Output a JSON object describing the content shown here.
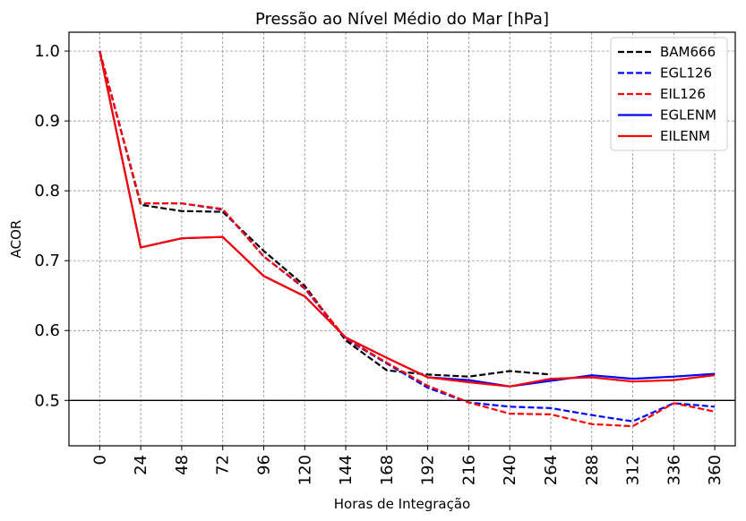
{
  "chart_data": {
    "type": "line",
    "title": "Pressão ao Nível Médio do Mar [hPa]",
    "xlabel": "Horas de Integração",
    "ylabel": "ACOR",
    "x": [
      0,
      24,
      48,
      72,
      96,
      120,
      144,
      168,
      192,
      216,
      240,
      264,
      288,
      312,
      336,
      360
    ],
    "xticks": [
      "0",
      "24",
      "48",
      "72",
      "96",
      "120",
      "144",
      "168",
      "192",
      "216",
      "240",
      "264",
      "288",
      "312",
      "336",
      "360"
    ],
    "yticks": [
      "0.5",
      "0.6",
      "0.7",
      "0.8",
      "0.9",
      "1.0"
    ],
    "ylim": [
      0.435,
      1.027
    ],
    "xlim": [
      -18,
      372
    ],
    "grid": true,
    "reference_line": 0.5,
    "legend_position": "top-right",
    "series": [
      {
        "name": "BAM666",
        "color": "#000000",
        "style": "dashed",
        "values": [
          1.0,
          0.78,
          0.771,
          0.77,
          0.714,
          0.664,
          0.586,
          0.543,
          0.537,
          0.534,
          0.542,
          0.537,
          null,
          null,
          null,
          null
        ]
      },
      {
        "name": "EGL126",
        "color": "#0000ff",
        "style": "dashed",
        "values": [
          1.0,
          0.782,
          0.782,
          0.773,
          0.706,
          0.66,
          0.588,
          0.553,
          0.518,
          0.497,
          0.491,
          0.489,
          0.479,
          0.47,
          0.496,
          0.491
        ]
      },
      {
        "name": "EIL126",
        "color": "#ff0000",
        "style": "dashed",
        "values": [
          1.0,
          0.782,
          0.782,
          0.774,
          0.706,
          0.661,
          0.589,
          0.554,
          0.521,
          0.497,
          0.481,
          0.48,
          0.466,
          0.463,
          0.496,
          0.484
        ]
      },
      {
        "name": "EGLENM",
        "color": "#0000ff",
        "style": "solid",
        "values": [
          1.0,
          0.719,
          0.732,
          0.734,
          0.678,
          0.649,
          0.59,
          0.561,
          0.533,
          0.529,
          0.52,
          0.528,
          0.536,
          0.531,
          0.534,
          0.538
        ]
      },
      {
        "name": "EILENM",
        "color": "#ff0000",
        "style": "solid",
        "values": [
          1.0,
          0.719,
          0.732,
          0.734,
          0.678,
          0.649,
          0.59,
          0.561,
          0.533,
          0.526,
          0.52,
          0.531,
          0.533,
          0.527,
          0.529,
          0.536
        ]
      }
    ]
  }
}
